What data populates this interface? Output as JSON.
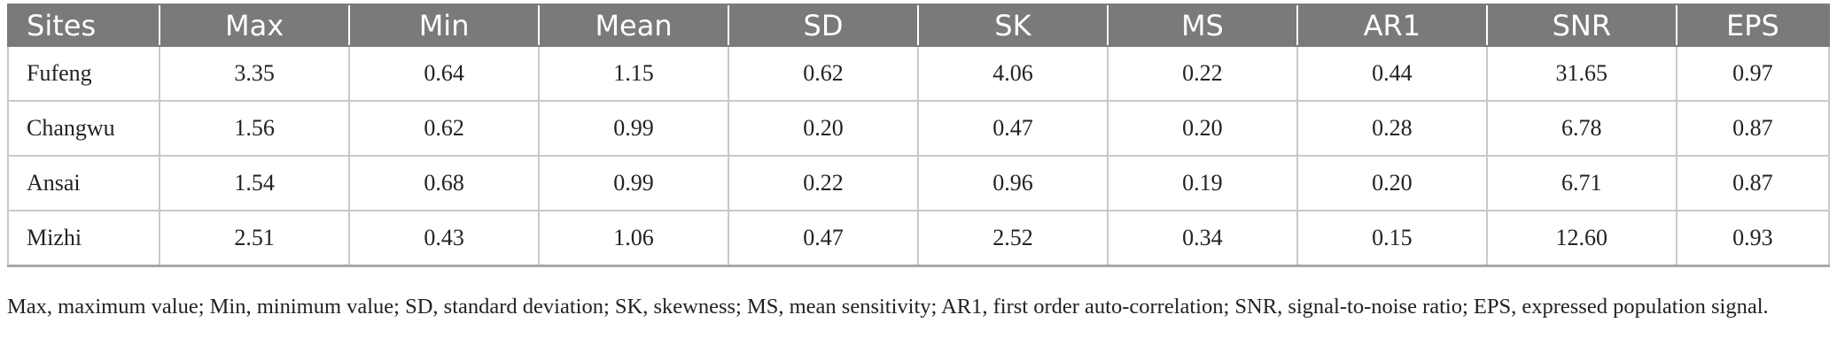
{
  "table": {
    "columns": [
      "Sites",
      "Max",
      "Min",
      "Mean",
      "SD",
      "SK",
      "MS",
      "AR1",
      "SNR",
      "EPS"
    ],
    "rows": [
      [
        "Fufeng",
        "3.35",
        "0.64",
        "1.15",
        "0.62",
        "4.06",
        "0.22",
        "0.44",
        "31.65",
        "0.97"
      ],
      [
        "Changwu",
        "1.56",
        "0.62",
        "0.99",
        "0.20",
        "0.47",
        "0.20",
        "0.28",
        "6.78",
        "0.87"
      ],
      [
        "Ansai",
        "1.54",
        "0.68",
        "0.99",
        "0.22",
        "0.96",
        "0.19",
        "0.20",
        "6.71",
        "0.87"
      ],
      [
        "Mizhi",
        "2.51",
        "0.43",
        "1.06",
        "0.47",
        "2.52",
        "0.34",
        "0.15",
        "12.60",
        "0.93"
      ]
    ]
  },
  "footnote": "Max, maximum value; Min, minimum value; SD, standard deviation; SK, skewness; MS, mean sensitivity; AR1, first order auto-correlation; SNR, signal-to-noise ratio; EPS, expressed population signal.",
  "colors": {
    "header_bg": "#7a7a7a",
    "header_text": "#ffffff",
    "grid": "#c9c9c9"
  }
}
